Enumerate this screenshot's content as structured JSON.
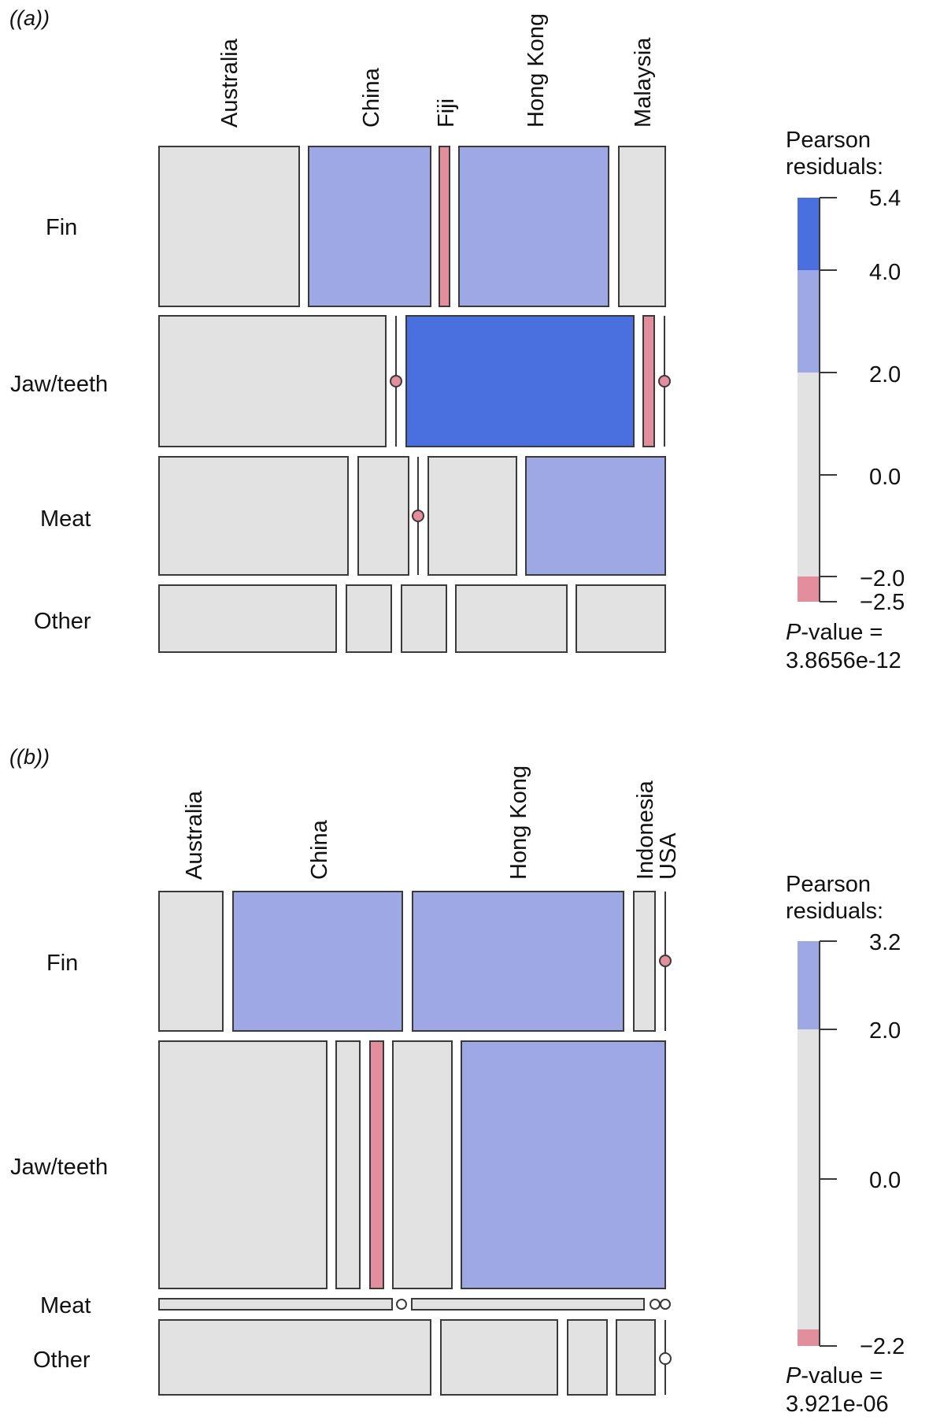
{
  "chart_data": [
    {
      "type": "mosaic",
      "panel_label": "(a)",
      "columns": [
        "Australia",
        "China",
        "Fiji",
        "Hong Kong",
        "Malaysia"
      ],
      "rows": [
        "Fin",
        "Jaw/teeth",
        "Meat",
        "Other"
      ],
      "residual_bins": {
        "strong_pos": ">4",
        "pos": "2 to 4",
        "neutral": "-2 to 2",
        "neg": "< -2"
      },
      "cells": [
        [
          "neutral",
          "pos",
          "neg",
          "pos",
          "neutral"
        ],
        [
          "neutral",
          "neg_empty",
          "strong_pos",
          "neg",
          "neg_empty"
        ],
        [
          "neutral",
          "neutral",
          "neg_empty",
          "neutral",
          "pos"
        ],
        [
          "neutral",
          "neutral",
          "neutral",
          "neutral",
          "neutral"
        ]
      ],
      "legend": {
        "title": "Pearson residuals:",
        "ticks": [
          "5.4",
          "4.0",
          "2.0",
          "0.0",
          "−2.0",
          "−2.5"
        ],
        "range": [
          -2.5,
          5.4
        ]
      },
      "p_value": {
        "label": "P",
        "suffix": "-value =",
        "value": "3.8656e-12"
      }
    },
    {
      "type": "mosaic",
      "panel_label": "(b)",
      "columns": [
        "Australia",
        "China",
        "Hong Kong",
        "Indonesia",
        "USA"
      ],
      "rows": [
        "Fin",
        "Jaw/teeth",
        "Meat",
        "Other"
      ],
      "residual_bins": {
        "pos": "2 to 3.2",
        "neutral": "-2 to 2",
        "neg": "< -2"
      },
      "cells": [
        [
          "neutral",
          "pos",
          "pos",
          "neutral",
          "neg_empty"
        ],
        [
          "neutral",
          "neutral",
          "neg",
          "neutral",
          "pos"
        ],
        [
          "neutral",
          "neutral_empty",
          "neutral",
          "neutral_empty",
          "neutral_empty"
        ],
        [
          "neutral",
          "neutral",
          "neutral",
          "neutral",
          "neutral_empty"
        ]
      ],
      "legend": {
        "title": "Pearson residuals:",
        "ticks": [
          "3.2",
          "2.0",
          "0.0",
          "−2.2"
        ],
        "range": [
          -2.2,
          3.2
        ]
      },
      "p_value": {
        "label": "P",
        "suffix": "-value =",
        "value": "3.921e-06"
      }
    }
  ],
  "colors": {
    "neutral": "#e2e2e2",
    "pos": "#9ea8e4",
    "strong_pos": "#4a70e0",
    "neg": "#e28e9c",
    "border": "#3a3a3a"
  }
}
